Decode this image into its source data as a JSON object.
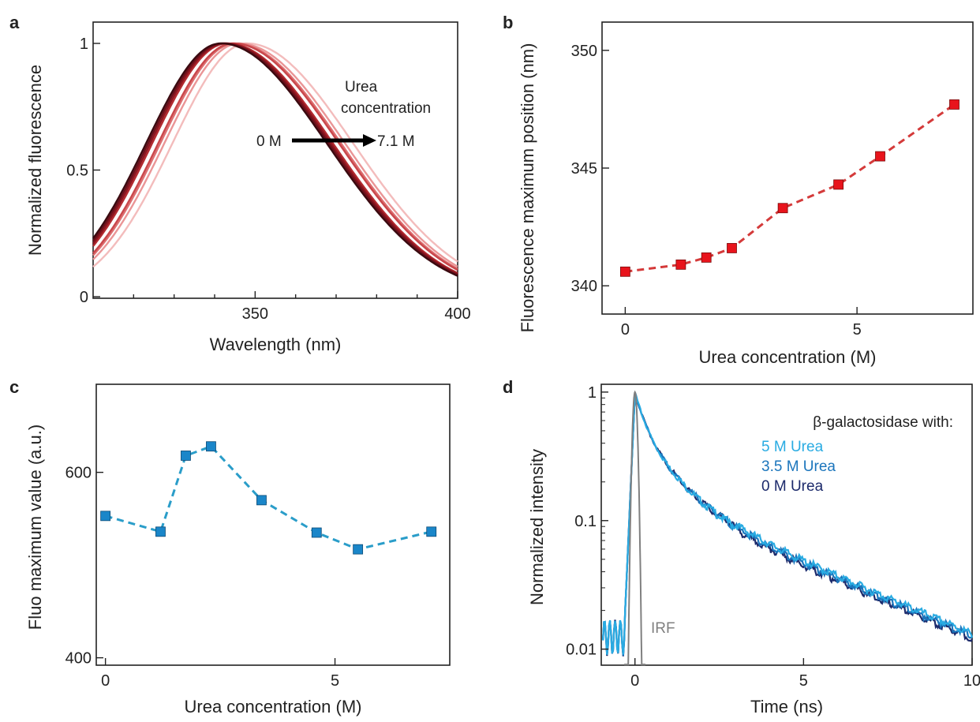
{
  "panels": [
    {
      "label": "a",
      "chart_data": {
        "type": "line",
        "xlabel": "Wavelength (nm)",
        "ylabel": "Normalized fluorescence",
        "xlim": [
          310,
          400
        ],
        "ylim": [
          0,
          1
        ],
        "xticks": [
          350,
          400
        ],
        "xticks_minor": [
          320,
          330,
          340,
          360,
          370,
          380,
          390
        ],
        "yticks": [
          0,
          0.5,
          1
        ],
        "annotations": {
          "title": "Urea",
          "subtitle": "concentration",
          "start": "0 M",
          "end": "7.1 M"
        },
        "series_peaks_nm": [
          341.5,
          342.0,
          342.5,
          343.0,
          344.5,
          345.0,
          346.0,
          348.0
        ],
        "series_colors": [
          "#3a0a10",
          "#6b0f1a",
          "#8e1620",
          "#b22a2f",
          "#c9474b",
          "#dc6e70",
          "#ea9596",
          "#f3bcbc"
        ],
        "left_width_nm": 26,
        "right_width_nm": 37
      }
    },
    {
      "label": "b",
      "chart_data": {
        "type": "scatter",
        "xlabel": "Urea concentration (M)",
        "ylabel": "Fluorescence maximum position (nm)",
        "xlim": [
          -0.5,
          7.5
        ],
        "ylim": [
          338.8,
          351.2
        ],
        "xticks": [
          0,
          5
        ],
        "yticks": [
          340,
          345,
          350
        ],
        "x": [
          0,
          1.2,
          1.75,
          2.3,
          3.4,
          4.6,
          5.5,
          7.1
        ],
        "y": [
          340.6,
          340.9,
          341.2,
          341.6,
          343.3,
          344.3,
          345.5,
          347.7
        ],
        "color": "#e8141c",
        "line_color": "#d43a3a"
      }
    },
    {
      "label": "c",
      "chart_data": {
        "type": "scatter",
        "xlabel": "Urea concentration (M)",
        "ylabel": "Fluo maximum value (a.u.)",
        "xlim": [
          -0.2,
          7.5
        ],
        "ylim": [
          392,
          695
        ],
        "xticks": [
          0,
          5
        ],
        "yticks": [
          400,
          600
        ],
        "x": [
          0,
          1.2,
          1.75,
          2.3,
          3.4,
          4.6,
          5.5,
          7.1
        ],
        "y": [
          553,
          536,
          618,
          628,
          570,
          535,
          517,
          536
        ],
        "color": "#1a86c9",
        "line_color": "#2a9dc9"
      }
    },
    {
      "label": "d",
      "chart_data": {
        "type": "line",
        "xlabel": "Time (ns)",
        "ylabel": "Normalized intensity",
        "xlim": [
          -1,
          10
        ],
        "ylim": [
          0.0075,
          1.15
        ],
        "yscale": "log",
        "xticks": [
          0,
          5,
          10
        ],
        "yticks": [
          0.01,
          0.1,
          1
        ],
        "yticklabels": [
          "0.01",
          "0.1",
          "1"
        ],
        "legend_title": "β-galactosidase with:",
        "legend_position": "top-right",
        "series": [
          {
            "name": "5 M Urea",
            "color": "#29abe2"
          },
          {
            "name": "3.5 M Urea",
            "color": "#1b75bc"
          },
          {
            "name": "0 M Urea",
            "color": "#1c2a6b"
          }
        ],
        "irf_label": "IRF",
        "irf_color": "#808080"
      }
    }
  ]
}
